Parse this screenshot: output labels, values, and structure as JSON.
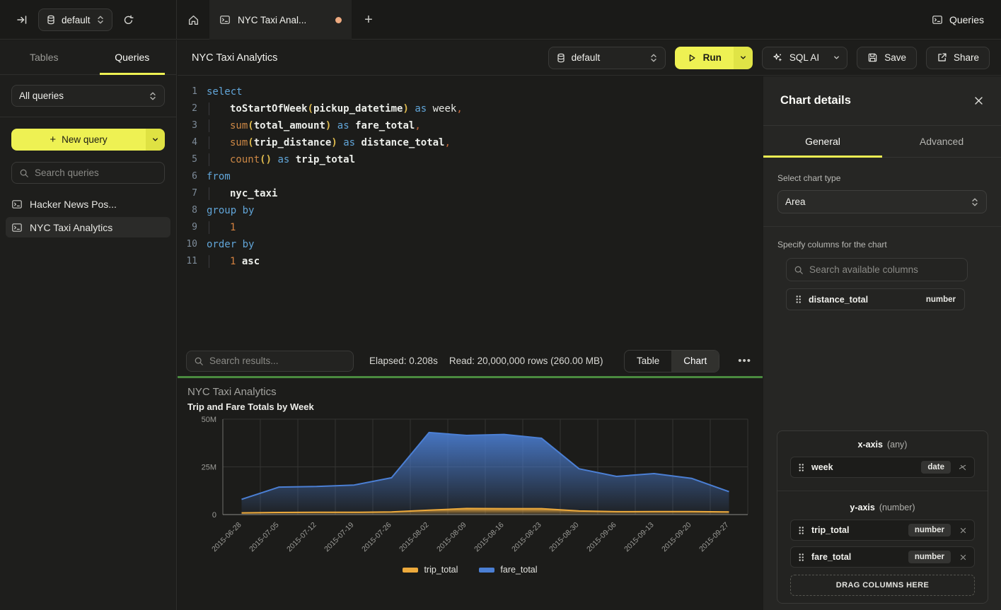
{
  "topbar": {
    "database_selector": "default",
    "tab_title": "NYC Taxi Anal...",
    "queries_label": "Queries",
    "new_tab_label": "+"
  },
  "sidebar": {
    "tabs": [
      {
        "label": "Tables",
        "active": false
      },
      {
        "label": "Queries",
        "active": true
      }
    ],
    "filter_select": "All queries",
    "new_query_label": "New query",
    "new_query_plus": "+",
    "search_placeholder": "Search queries",
    "queries": [
      {
        "label": "Hacker News Pos...",
        "selected": false
      },
      {
        "label": "NYC Taxi Analytics",
        "selected": true
      }
    ]
  },
  "header": {
    "title": "NYC Taxi Analytics",
    "database_selector": "default",
    "run_label": "Run",
    "sql_ai_label": "SQL AI",
    "save_label": "Save",
    "share_label": "Share"
  },
  "editor": {
    "lines": [
      [
        [
          "kw",
          "select"
        ]
      ],
      [
        [
          "ind",
          ""
        ],
        [
          "id",
          "toStartOfWeek"
        ],
        [
          "pr",
          "("
        ],
        [
          "id",
          "pickup_datetime"
        ],
        [
          "pr",
          ")"
        ],
        [
          "pl",
          " "
        ],
        [
          "kw",
          "as"
        ],
        [
          "pl",
          " week"
        ],
        [
          "pu",
          ","
        ]
      ],
      [
        [
          "ind",
          ""
        ],
        [
          "fn",
          "sum"
        ],
        [
          "pr",
          "("
        ],
        [
          "id",
          "total_amount"
        ],
        [
          "pr",
          ")"
        ],
        [
          "pl",
          " "
        ],
        [
          "kw",
          "as"
        ],
        [
          "pl",
          " "
        ],
        [
          "id",
          "fare_total"
        ],
        [
          "pu",
          ","
        ]
      ],
      [
        [
          "ind",
          ""
        ],
        [
          "fn",
          "sum"
        ],
        [
          "pr",
          "("
        ],
        [
          "id",
          "trip_distance"
        ],
        [
          "pr",
          ")"
        ],
        [
          "pl",
          " "
        ],
        [
          "kw",
          "as"
        ],
        [
          "pl",
          " "
        ],
        [
          "id",
          "distance_total"
        ],
        [
          "pu",
          ","
        ]
      ],
      [
        [
          "ind",
          ""
        ],
        [
          "fn",
          "count"
        ],
        [
          "pr",
          "()"
        ],
        [
          "pl",
          " "
        ],
        [
          "kw",
          "as"
        ],
        [
          "pl",
          " "
        ],
        [
          "id",
          "trip_total"
        ]
      ],
      [
        [
          "kw",
          "from"
        ]
      ],
      [
        [
          "ind",
          ""
        ],
        [
          "id",
          "nyc_taxi"
        ]
      ],
      [
        [
          "kw",
          "group by"
        ]
      ],
      [
        [
          "ind",
          ""
        ],
        [
          "num",
          "1"
        ]
      ],
      [
        [
          "kw",
          "order by"
        ]
      ],
      [
        [
          "ind",
          ""
        ],
        [
          "num",
          "1"
        ],
        [
          "pl",
          " "
        ],
        [
          "id",
          "asc"
        ]
      ]
    ]
  },
  "results": {
    "search_placeholder": "Search results...",
    "elapsed": "Elapsed: 0.208s",
    "read": "Read: 20,000,000 rows (260.00 MB)",
    "view_toggle": [
      {
        "label": "Table",
        "active": false
      },
      {
        "label": "Chart",
        "active": true
      }
    ],
    "more_label": "•••"
  },
  "chart_data": {
    "type": "area",
    "title": "NYC Taxi Analytics",
    "subtitle": "Trip and Fare Totals by Week",
    "categories": [
      "2015-06-28",
      "2015-07-05",
      "2015-07-12",
      "2015-07-19",
      "2015-07-26",
      "2015-08-02",
      "2015-08-09",
      "2015-08-16",
      "2015-08-23",
      "2015-08-30",
      "2015-09-06",
      "2015-09-13",
      "2015-09-20",
      "2015-09-27"
    ],
    "series": [
      {
        "name": "trip_total",
        "color": "#edaa3c",
        "values": [
          900000,
          1100000,
          1200000,
          1200000,
          1400000,
          2300000,
          3200000,
          3100000,
          3100000,
          1900000,
          1500000,
          1600000,
          1600000,
          1400000
        ]
      },
      {
        "name": "fare_total",
        "color": "#4b7fd4",
        "values": [
          8000000,
          14400000,
          14700000,
          15500000,
          19300000,
          43000000,
          41500000,
          42000000,
          40000000,
          24000000,
          20000000,
          21500000,
          19000000,
          12000000
        ]
      }
    ],
    "ylim": [
      0,
      50000000
    ],
    "yticks": [
      {
        "value": 0,
        "label": "0"
      },
      {
        "value": 25000000,
        "label": "25M"
      },
      {
        "value": 50000000,
        "label": "50M"
      }
    ],
    "x_axis_type": "category",
    "grid": true,
    "legend_position": "bottom"
  },
  "chart_panel": {
    "title": "Chart details",
    "tabs": [
      {
        "label": "General",
        "active": true
      },
      {
        "label": "Advanced",
        "active": false
      }
    ],
    "chart_type_label": "Select chart type",
    "chart_type": "Area",
    "columns_label": "Specify columns for the chart",
    "search_placeholder": "Search available columns",
    "available_columns": [
      {
        "name": "distance_total",
        "type": "number"
      }
    ],
    "x_axis": {
      "title": "x-axis",
      "hint": "(any)",
      "columns": [
        {
          "name": "week",
          "type": "date"
        }
      ]
    },
    "y_axis": {
      "title": "y-axis",
      "hint": "(number)",
      "columns": [
        {
          "name": "trip_total",
          "type": "number"
        },
        {
          "name": "fare_total",
          "type": "number"
        }
      ]
    },
    "drop_label": "DRAG COLUMNS HERE"
  },
  "colors": {
    "accent_yellow": "#eef153",
    "run_chevron_yellow": "#e0e446",
    "success_green": "#4a8a3f",
    "series_blue": "#4b7fd4",
    "series_yellow": "#edaa3c",
    "tab_dot_orange": "#edaa80"
  }
}
